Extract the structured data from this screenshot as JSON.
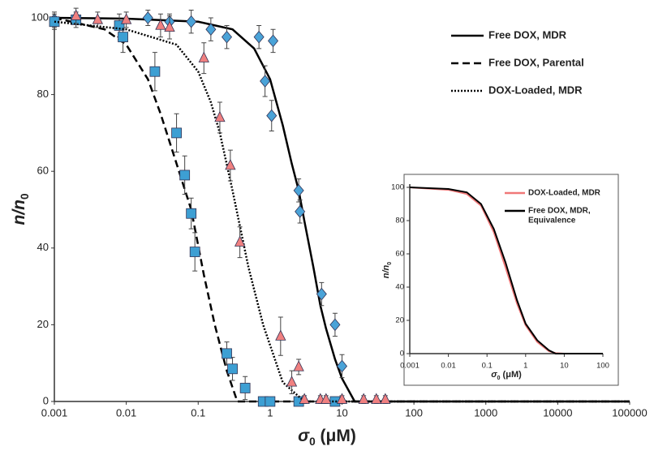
{
  "chart_data": [
    {
      "type": "line",
      "xscale": "log",
      "xlim": [
        0.001,
        100000
      ],
      "xticks": [
        0.001,
        0.01,
        0.1,
        1,
        10,
        100,
        1000,
        10000,
        100000
      ],
      "ylim": [
        0,
        100
      ],
      "yticks": [
        0,
        20,
        40,
        60,
        80,
        100
      ],
      "legend": "top-right",
      "ylabel": [
        {
          "text": "n/n",
          "italic": true
        },
        {
          "text": "0",
          "sub": true
        }
      ],
      "xlabel": [
        {
          "text": "σ",
          "italic": true
        },
        {
          "text": "0",
          "sub": true
        },
        {
          "text": " (μM)"
        }
      ],
      "series": [
        {
          "name": "Free DOX, MDR",
          "color": "#000000",
          "dash": "solid",
          "x": [
            0.001,
            0.01,
            0.1,
            0.3,
            0.6,
            1,
            1.5,
            2,
            2.5,
            3,
            4,
            5,
            6,
            8,
            10,
            15,
            100000
          ],
          "values": [
            100,
            99.8,
            99,
            97,
            92,
            84,
            72,
            62,
            55,
            47,
            35,
            25,
            19,
            11,
            6,
            0,
            0
          ],
          "marker": {
            "shape": "diamond",
            "color": "#4aa3d8",
            "x": [
              0.001,
              0.02,
              0.04,
              0.08,
              0.15,
              0.25,
              0.7,
              1.1,
              0.85,
              1.05,
              2.5,
              2.6,
              5.2,
              8,
              10
            ],
            "values": [
              99.5,
              100,
              99,
              99,
              97,
              95,
              95,
              94,
              83.5,
              74.5,
              55,
              49.5,
              28,
              20,
              9.2
            ],
            "errors": [
              2,
              2,
              2,
              3,
              3,
              3,
              3,
              3,
              4,
              4,
              3,
              3,
              3,
              3,
              3
            ]
          }
        },
        {
          "name": "Free DOX, Parental",
          "color": "#000000",
          "dash": "dashed",
          "x": [
            0.001,
            0.005,
            0.01,
            0.02,
            0.03,
            0.05,
            0.08,
            0.12,
            0.17,
            0.25,
            0.35,
            100000
          ],
          "values": [
            100,
            97,
            93,
            84,
            75,
            62,
            50,
            33,
            20,
            8,
            0,
            0
          ],
          "marker": {
            "shape": "square",
            "color": "#3d9fd3",
            "x": [
              0.001,
              0.002,
              0.008,
              0.009,
              0.025,
              0.05,
              0.065,
              0.08,
              0.09,
              0.25,
              0.3,
              0.45,
              0.8,
              1,
              2.5,
              8
            ],
            "values": [
              99,
              99.5,
              98,
              95,
              86,
              70,
              59,
              49,
              39,
              12.5,
              8.5,
              3.5,
              0,
              0,
              0,
              0
            ],
            "errors": [
              2,
              2,
              3,
              4,
              5,
              5,
              5,
              4,
              5,
              3,
              3,
              3,
              1,
              1,
              1,
              1
            ]
          }
        },
        {
          "name": "DOX-Loaded, MDR",
          "color": "#000000",
          "dash": "dotted",
          "x": [
            0.001,
            0.01,
            0.05,
            0.1,
            0.15,
            0.2,
            0.3,
            0.5,
            0.8,
            1.5,
            3,
            100000
          ],
          "values": [
            99,
            97,
            93,
            86,
            78,
            70,
            55,
            35,
            20,
            5,
            0,
            0
          ],
          "marker": {
            "shape": "triangle",
            "color": "#f08080",
            "x": [
              0.002,
              0.004,
              0.01,
              0.03,
              0.04,
              0.12,
              0.2,
              0.28,
              0.38,
              1.4,
              2,
              2.5,
              3,
              5,
              6,
              10,
              20,
              30,
              40
            ],
            "values": [
              100.5,
              99.5,
              99.5,
              98,
              97.5,
              89.5,
              74,
              61.5,
              41.5,
              17,
              5,
              9,
              0.5,
              0.5,
              0.5,
              0.5,
              0.5,
              0.5,
              0.5
            ],
            "errors": [
              2,
              2,
              2,
              3,
              3,
              4,
              4,
              4,
              4,
              5,
              3,
              2,
              1,
              1,
              1,
              1,
              1,
              1,
              1
            ]
          }
        }
      ]
    },
    {
      "type": "line",
      "xscale": "log",
      "xlim": [
        0.001,
        100
      ],
      "xticks": [
        0.001,
        0.01,
        0.1,
        1,
        10,
        100
      ],
      "ylim": [
        0,
        100
      ],
      "yticks": [
        0,
        20,
        40,
        60,
        80,
        100
      ],
      "legend": "top-right",
      "ylabel": [
        {
          "text": "n/n",
          "italic": true
        },
        {
          "text": "0",
          "sub": true
        }
      ],
      "xlabel": [
        {
          "text": "σ",
          "italic": true
        },
        {
          "text": "0",
          "sub": true
        },
        {
          "text": " (μM)"
        }
      ],
      "series": [
        {
          "name": [
            "DOX-Loaded, MDR"
          ],
          "color": "#f07878",
          "dash": "solid",
          "x": [
            0.001,
            0.01,
            0.03,
            0.07,
            0.15,
            0.3,
            0.6,
            1,
            2,
            4,
            6,
            10,
            100
          ],
          "values": [
            100,
            98.5,
            96,
            89,
            73,
            52,
            30,
            17,
            7,
            1.5,
            0.3,
            0,
            0
          ]
        },
        {
          "name": [
            "Free DOX, MDR,",
            "Equivalence"
          ],
          "color": "#000000",
          "dash": "solid",
          "x": [
            0.001,
            0.01,
            0.03,
            0.07,
            0.15,
            0.3,
            0.6,
            1,
            2,
            4,
            6,
            100
          ],
          "values": [
            100,
            99,
            97,
            90,
            75,
            55,
            32,
            18,
            8,
            2,
            0,
            0
          ]
        }
      ]
    }
  ]
}
